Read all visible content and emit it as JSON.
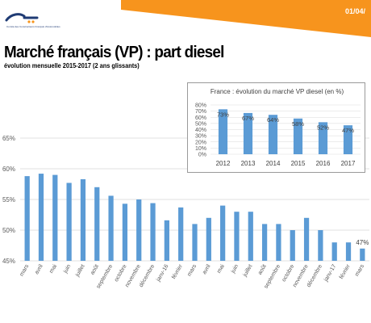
{
  "header": {
    "date": "01/04/",
    "logo_caption": "Comité des Constructeurs Français d'Automobiles",
    "accent_color": "#f7941d",
    "brand_color": "#1f3b74"
  },
  "title": "Marché français (VP) : part diesel",
  "subtitle": "évolution mensuelle 2015-2017 (2 ans glissants)",
  "chart_data": [
    {
      "type": "bar",
      "title": "",
      "xlabel": "",
      "ylabel": "",
      "ylim": [
        45,
        65
      ],
      "yticks": [
        "45%",
        "50%",
        "55%",
        "60%",
        "65%"
      ],
      "grid": true,
      "bar_color": "#5b9bd5",
      "categories": [
        "mars",
        "avril",
        "mai",
        "juin",
        "juillet",
        "août",
        "septembre",
        "octobre",
        "novembre",
        "décembre",
        "janv-16",
        "février",
        "mars",
        "avril",
        "mai",
        "juin",
        "juillet",
        "août",
        "septembre",
        "octobre",
        "novembre",
        "décembre",
        "janv-17",
        "février",
        "mars"
      ],
      "values": [
        58.8,
        59.2,
        59.0,
        57.7,
        58.3,
        57.0,
        55.6,
        54.3,
        55.0,
        54.4,
        51.6,
        53.7,
        51.0,
        52.0,
        54.0,
        53.0,
        53.0,
        51.0,
        51.0,
        50.0,
        52.0,
        50.0,
        48.0,
        48.0,
        47.0
      ],
      "data_labels": [
        {
          "index": 24,
          "text": "47%"
        }
      ]
    },
    {
      "type": "bar",
      "title": "France : évolution du marché VP diesel (en %)",
      "xlabel": "",
      "ylabel": "",
      "ylim": [
        0,
        80
      ],
      "yticks": [
        "0%",
        "10%",
        "20%",
        "30%",
        "40%",
        "50%",
        "60%",
        "70%",
        "80%"
      ],
      "grid": true,
      "legend": "none",
      "bar_color": "#5b9bd5",
      "categories": [
        "2012",
        "2013",
        "2014",
        "2015",
        "2016",
        "2017"
      ],
      "values": [
        73,
        67,
        64,
        58,
        52,
        47
      ],
      "data_labels": [
        "73%",
        "67%",
        "64%",
        "58%",
        "52%",
        "47%"
      ]
    }
  ]
}
